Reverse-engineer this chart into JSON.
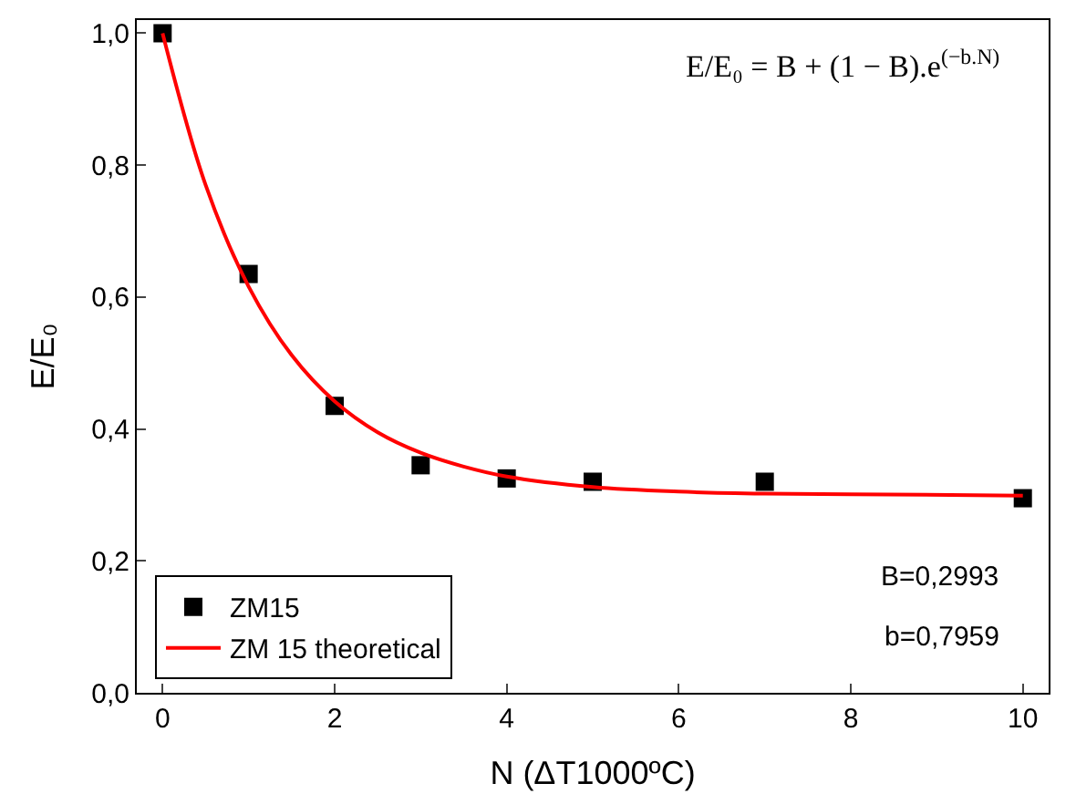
{
  "chart_data": {
    "type": "scatter",
    "xlabel": "N (ΔT1000ºC)",
    "ylabel": "E/E₀",
    "xlim": [
      -0.3,
      10.3
    ],
    "ylim": [
      0,
      1.02
    ],
    "xticks": [
      0,
      2,
      4,
      6,
      8,
      10
    ],
    "yticks": [
      {
        "value": 0,
        "label": "0,0"
      },
      {
        "value": 0.2,
        "label": "0,2"
      },
      {
        "value": 0.4,
        "label": "0,4"
      },
      {
        "value": 0.6,
        "label": "0,6"
      },
      {
        "value": 0.8,
        "label": "0,8"
      },
      {
        "value": 1.0,
        "label": "1,0"
      }
    ],
    "legend": "bottom left",
    "marker": "square",
    "series": [
      {
        "name": "ZM15",
        "color": "#000000",
        "x": [
          0,
          1,
          2,
          3,
          4,
          5,
          7,
          10
        ],
        "values": [
          1.0,
          0.635,
          0.435,
          0.345,
          0.325,
          0.32,
          0.32,
          0.295
        ]
      },
      {
        "name": "ZM 15 theoretical",
        "type": "line",
        "color": "#ff0000",
        "marker": "none",
        "x": [
          0,
          0.5,
          1,
          1.5,
          2,
          2.5,
          3,
          3.5,
          4,
          5,
          6,
          7,
          8,
          10
        ],
        "values": [
          1.0,
          0.77,
          0.616,
          0.512,
          0.442,
          0.395,
          0.364,
          0.343,
          0.328,
          0.312,
          0.305,
          0.302,
          0.301,
          0.299
        ]
      }
    ],
    "annotations": [
      "E/E₀ = B + (1 − B).e$^{(−b.N)}$",
      "B=0,2993",
      "b=0,7959"
    ]
  }
}
